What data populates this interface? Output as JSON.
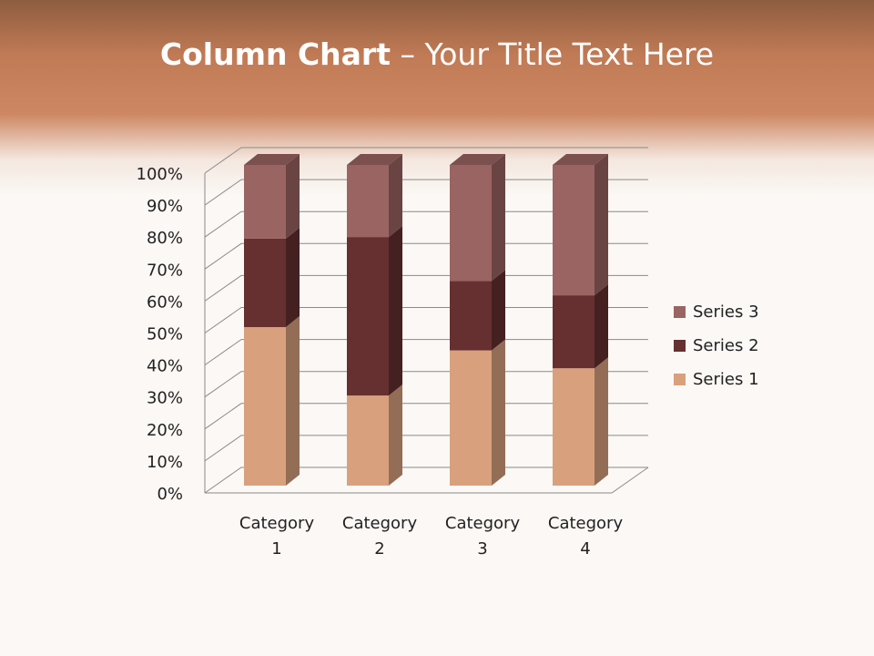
{
  "slide": {
    "title_bold": "Column Chart",
    "title_rest": " – Your Title Text Here"
  },
  "chart_data": {
    "type": "bar",
    "subtype": "3d-stacked-100-percent-column",
    "categories": [
      "Category 1",
      "Category 2",
      "Category 3",
      "Category 4"
    ],
    "series": [
      {
        "name": "Series 1",
        "values": [
          4.3,
          2.5,
          3.5,
          4.5
        ],
        "color": "#d9a07e"
      },
      {
        "name": "Series 2",
        "values": [
          2.4,
          4.4,
          1.8,
          2.8
        ],
        "color": "#662f30"
      },
      {
        "name": "Series 3",
        "values": [
          2,
          2,
          3,
          5
        ],
        "color": "#9a6462"
      }
    ],
    "yticks": [
      "0%",
      "10%",
      "20%",
      "30%",
      "40%",
      "50%",
      "60%",
      "70%",
      "80%",
      "90%",
      "100%"
    ],
    "ylim": [
      0,
      100
    ],
    "grid": true,
    "legend": "right"
  }
}
